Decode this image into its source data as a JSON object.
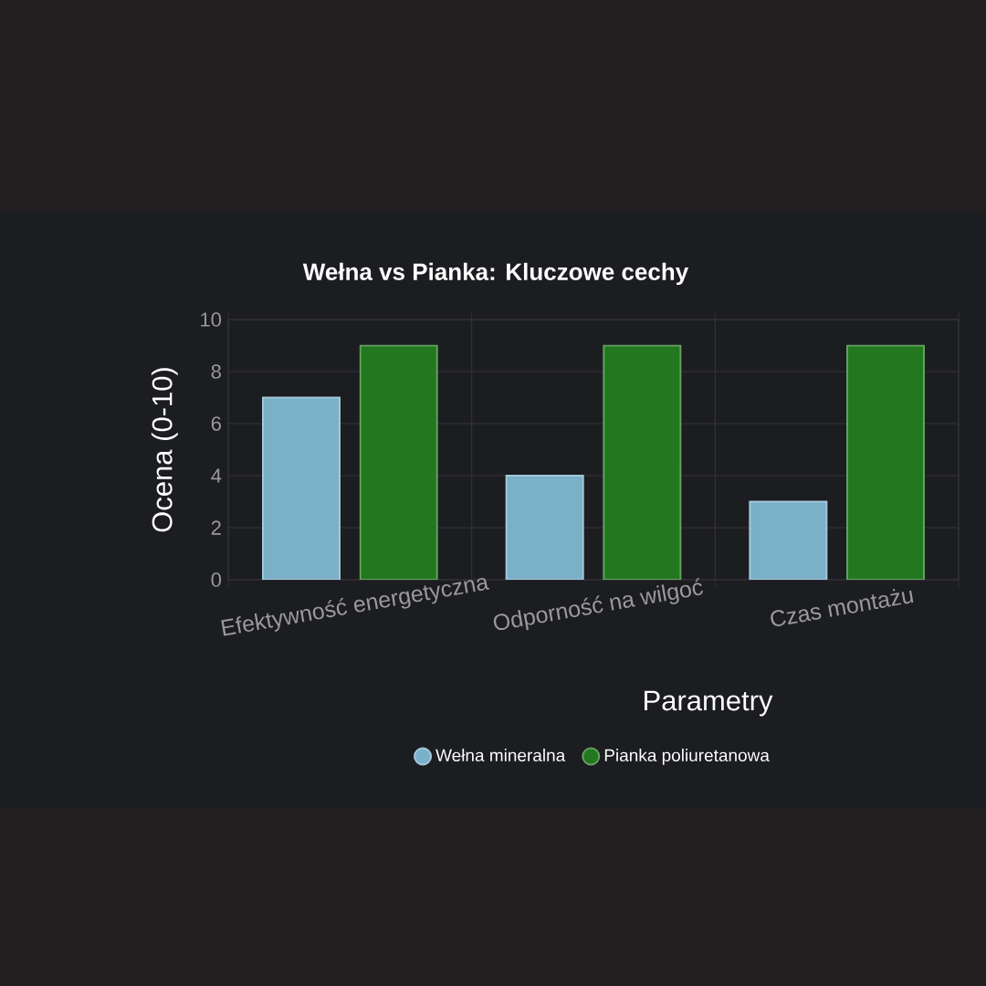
{
  "chart_data": {
    "type": "bar",
    "title": "Wełna vs Pianka: Kluczowe cechy",
    "xlabel": "Parametry",
    "ylabel": "Ocena (0-10)",
    "categories": [
      "Efektywność energetyczna",
      "Odporność na wilgoć",
      "Czas montażu"
    ],
    "series": [
      {
        "name": "Wełna mineralna",
        "color": "#7ab0c8",
        "values": [
          7,
          4,
          3
        ]
      },
      {
        "name": "Pianka poliuretanowa",
        "color": "#22771f",
        "values": [
          9,
          9,
          9
        ]
      }
    ],
    "ylim": [
      0,
      10
    ],
    "yticks": [
      0,
      2,
      4,
      6,
      8,
      10
    ],
    "grid": true,
    "legend": "bottom"
  }
}
